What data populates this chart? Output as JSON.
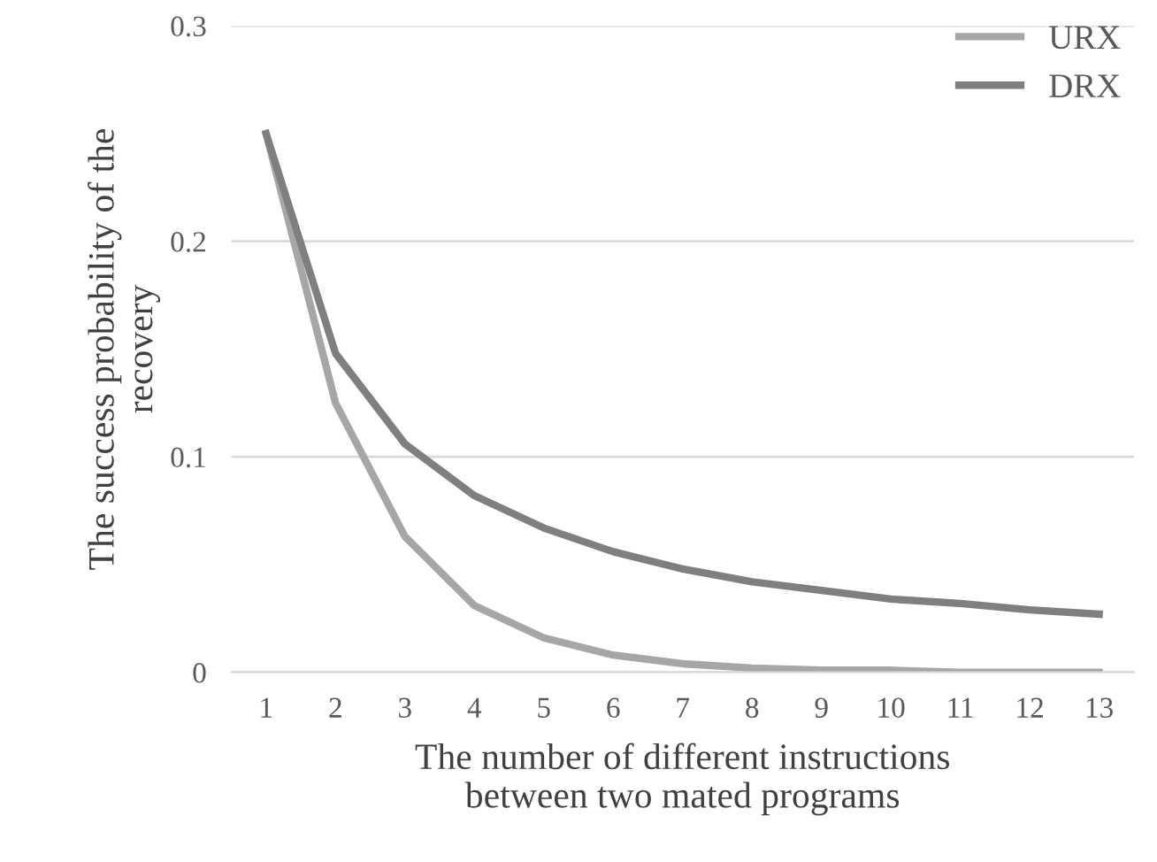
{
  "chart_data": {
    "type": "line",
    "xlabel": "The number of different instructions\nbetween two mated programs",
    "ylabel": "The success probability of the\nrecovery",
    "categories": [
      "1",
      "2",
      "3",
      "4",
      "5",
      "6",
      "7",
      "8",
      "9",
      "10",
      "11",
      "12",
      "13"
    ],
    "series": [
      {
        "name": "URX",
        "color": "#a6a6a6",
        "values": [
          0.25,
          0.125,
          0.063,
          0.031,
          0.016,
          0.008,
          0.004,
          0.002,
          0.001,
          0.001,
          0.0,
          0.0,
          0.0
        ]
      },
      {
        "name": "DRX",
        "color": "#7f7f7f",
        "values": [
          0.25,
          0.148,
          0.106,
          0.082,
          0.067,
          0.056,
          0.048,
          0.042,
          0.038,
          0.034,
          0.032,
          0.029,
          0.027
        ]
      }
    ],
    "ylim": [
      0,
      0.3
    ],
    "yticks": [
      0,
      0.1,
      0.2,
      0.3
    ],
    "grid": "y",
    "legend": "top right",
    "marker": "none",
    "line_style": "solid"
  }
}
